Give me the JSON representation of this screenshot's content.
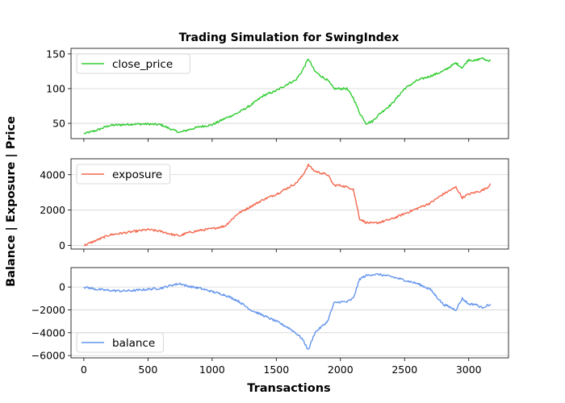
{
  "chart_data": {
    "type": "line",
    "title": "Trading Simulation for SwingIndex",
    "xlabel": "Transactions",
    "ylabel": "Balance | Exposure | Price",
    "xlim": [
      -100,
      3310
    ],
    "x_ticks": [
      0,
      500,
      1000,
      1500,
      2000,
      2500,
      3000
    ],
    "grid": "horizontal",
    "panels": [
      {
        "name": "close_price",
        "color": "#32cd32",
        "legend_position": "upper-left",
        "ylim": [
          28,
          158
        ],
        "y_ticks": [
          50,
          100,
          150
        ],
        "x": [
          0,
          100,
          200,
          300,
          400,
          500,
          600,
          700,
          750,
          800,
          900,
          1000,
          1100,
          1200,
          1300,
          1400,
          1500,
          1600,
          1650,
          1700,
          1750,
          1800,
          1850,
          1900,
          1950,
          2000,
          2050,
          2100,
          2150,
          2200,
          2250,
          2300,
          2400,
          2500,
          2600,
          2700,
          2800,
          2900,
          2950,
          3000,
          3050,
          3100,
          3150,
          3170
        ],
        "values": [
          35,
          40,
          47,
          48,
          49,
          49,
          48,
          40,
          37,
          40,
          45,
          48,
          57,
          65,
          76,
          90,
          97,
          108,
          112,
          125,
          143,
          125,
          118,
          112,
          100,
          100,
          100,
          87,
          65,
          50,
          53,
          63,
          78,
          100,
          112,
          118,
          125,
          137,
          130,
          142,
          140,
          144,
          140,
          142
        ]
      },
      {
        "name": "exposure",
        "color": "#f4694f",
        "legend_position": "upper-left",
        "ylim": [
          -200,
          4900
        ],
        "y_ticks": [
          0,
          2000,
          4000
        ],
        "x": [
          0,
          100,
          200,
          300,
          400,
          500,
          600,
          700,
          750,
          800,
          900,
          1000,
          1100,
          1200,
          1300,
          1400,
          1500,
          1600,
          1650,
          1700,
          1750,
          1800,
          1850,
          1900,
          1950,
          2000,
          2050,
          2100,
          2150,
          2200,
          2250,
          2300,
          2400,
          2500,
          2600,
          2700,
          2800,
          2900,
          2950,
          3000,
          3050,
          3100,
          3150,
          3170
        ],
        "values": [
          0,
          300,
          600,
          700,
          800,
          900,
          800,
          600,
          550,
          700,
          850,
          950,
          1100,
          1800,
          2200,
          2600,
          2900,
          3300,
          3500,
          3900,
          4550,
          4200,
          4100,
          4000,
          3400,
          3400,
          3300,
          3200,
          1500,
          1300,
          1250,
          1300,
          1500,
          1800,
          2100,
          2400,
          2900,
          3300,
          2700,
          2900,
          3000,
          3100,
          3300,
          3500
        ]
      },
      {
        "name": "balance",
        "color": "#6495ed",
        "legend_position": "lower-left",
        "ylim": [
          -6200,
          1700
        ],
        "y_ticks": [
          -6000,
          -4000,
          -2000,
          0
        ],
        "x": [
          0,
          100,
          200,
          300,
          400,
          500,
          600,
          700,
          750,
          800,
          900,
          1000,
          1100,
          1200,
          1300,
          1400,
          1500,
          1600,
          1650,
          1700,
          1750,
          1800,
          1850,
          1900,
          1950,
          2000,
          2050,
          2100,
          2150,
          2200,
          2250,
          2300,
          2400,
          2500,
          2600,
          2700,
          2800,
          2900,
          2950,
          3000,
          3050,
          3100,
          3150,
          3170
        ],
        "values": [
          0,
          -200,
          -300,
          -350,
          -300,
          -200,
          -100,
          200,
          300,
          100,
          -100,
          -400,
          -700,
          -1200,
          -2000,
          -2500,
          -3000,
          -3600,
          -4000,
          -4500,
          -5500,
          -4000,
          -3500,
          -3000,
          -1400,
          -1300,
          -1300,
          -1000,
          700,
          1000,
          1100,
          1100,
          900,
          600,
          300,
          -200,
          -1500,
          -2000,
          -1000,
          -1500,
          -1500,
          -1800,
          -1600,
          -1500
        ]
      }
    ]
  }
}
